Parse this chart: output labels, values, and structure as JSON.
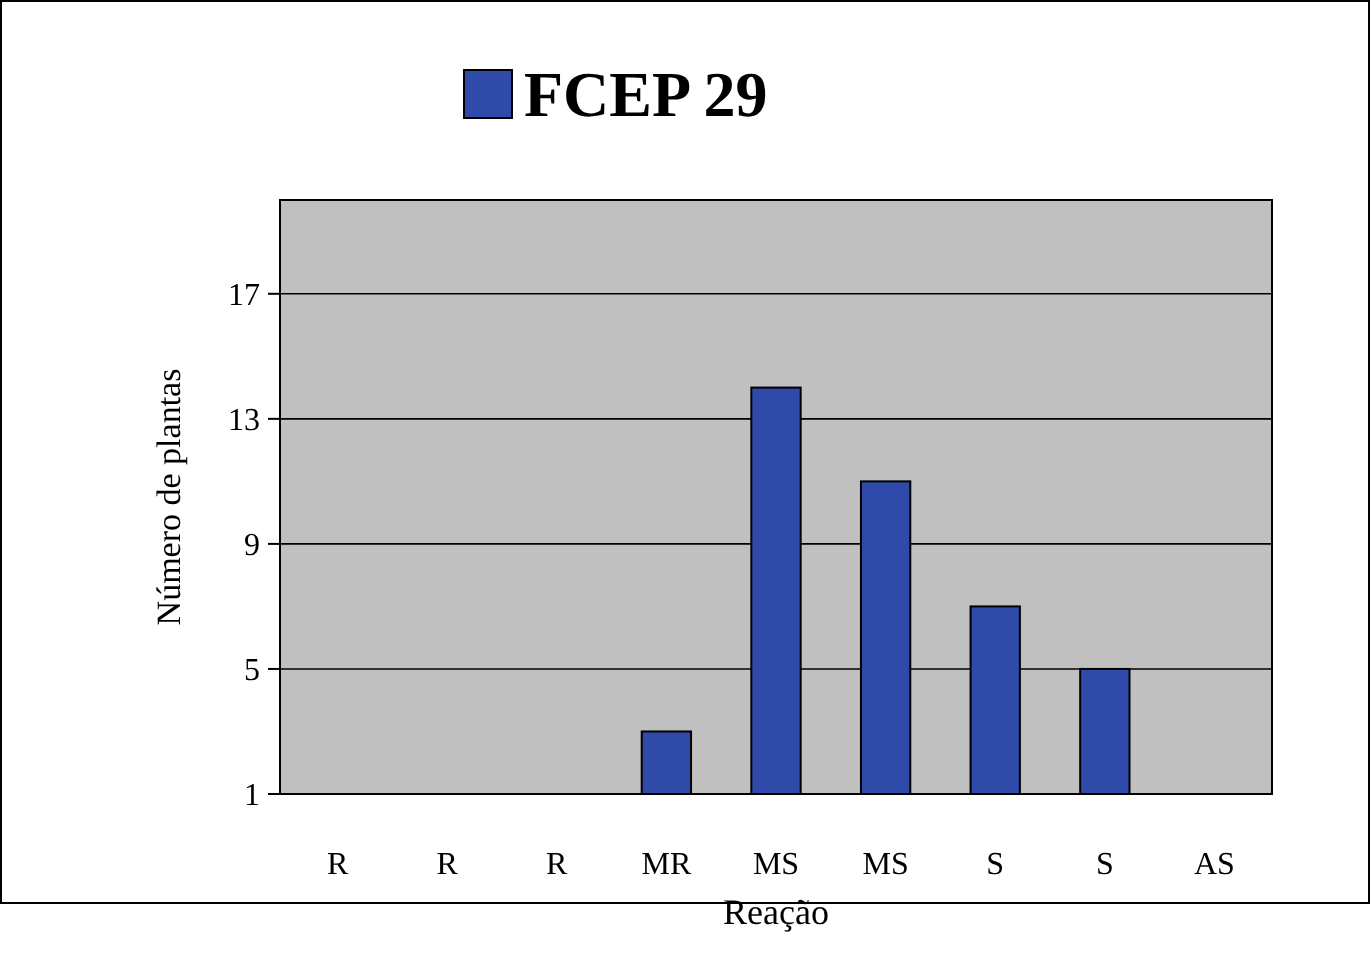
{
  "chart_data": {
    "type": "bar",
    "xlabel": "Reação",
    "ylabel": "Número de plantas",
    "categories": [
      "R",
      "R",
      "R",
      "MR",
      "MS",
      "MS",
      "S",
      "S",
      "AS"
    ],
    "series": [
      {
        "name": "FCEP 29",
        "color": "#2f4aa8",
        "values": [
          null,
          null,
          null,
          3,
          14,
          11,
          7,
          5,
          null
        ]
      }
    ],
    "ylim": [
      1,
      20
    ],
    "yticks": [
      1,
      5,
      9,
      13,
      17
    ],
    "grid": "y",
    "legend": "top"
  }
}
